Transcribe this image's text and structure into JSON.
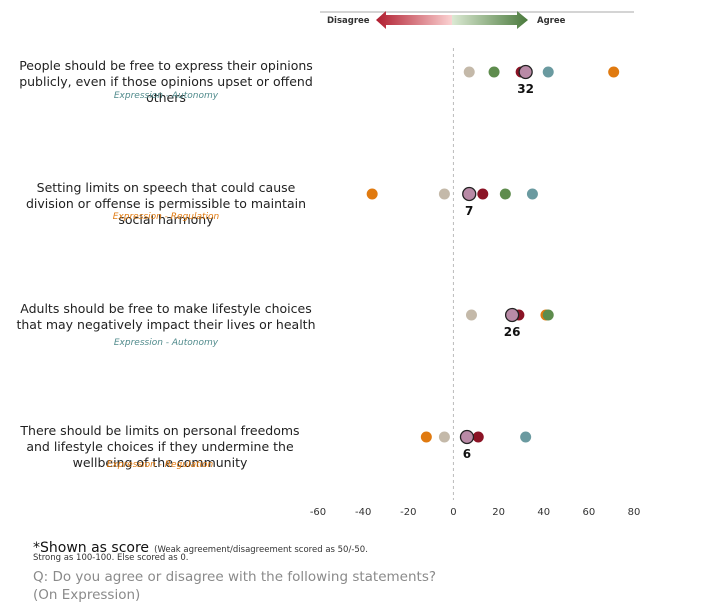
{
  "scale": {
    "disagree_label": "Disagree",
    "agree_label": "Agree"
  },
  "chart_data": {
    "type": "scatter",
    "xlim": [
      -60,
      80
    ],
    "x_ticks": [
      -60,
      -40,
      -20,
      0,
      20,
      40,
      60,
      80
    ],
    "colors": {
      "orange": "#e07a10",
      "beige": "#c4b9a9",
      "green": "#5e8c4d",
      "darkred": "#8b1325",
      "teal": "#6a9aa0",
      "overall": "#b98aa6"
    },
    "statements": [
      {
        "text": "People should be free to express their opinions publicly, even if those opinions upset or offend others",
        "category": "Expression - Autonomy",
        "category_type": "autonomy",
        "score": 32,
        "score_label": "32",
        "points": [
          {
            "group": "beige",
            "value": 7
          },
          {
            "group": "green",
            "value": 18
          },
          {
            "group": "darkred",
            "value": 30
          },
          {
            "group": "teal",
            "value": 42
          },
          {
            "group": "orange",
            "value": 71
          }
        ]
      },
      {
        "text": "Setting limits on speech that could cause division or offense is permissible to maintain social harmony",
        "category": "Expression - Regulation",
        "category_type": "regulation",
        "score": 7,
        "score_label": "7",
        "points": [
          {
            "group": "orange",
            "value": -36
          },
          {
            "group": "beige",
            "value": -4
          },
          {
            "group": "darkred",
            "value": 13
          },
          {
            "group": "green",
            "value": 23
          },
          {
            "group": "teal",
            "value": 35
          }
        ]
      },
      {
        "text": "Adults should be free to make lifestyle choices that may negatively impact their lives or health",
        "category": "Expression - Autonomy",
        "category_type": "autonomy",
        "score": 26,
        "score_label": "26",
        "points": [
          {
            "group": "beige",
            "value": 8
          },
          {
            "group": "darkred",
            "value": 29
          },
          {
            "group": "orange",
            "value": 41
          },
          {
            "group": "green",
            "value": 42
          }
        ]
      },
      {
        "text": "There should be limits on personal freedoms and lifestyle choices if they undermine the wellbeing of the community",
        "category": "Expression - Regulation",
        "category_type": "regulation",
        "score": 6,
        "score_label": "6",
        "points": [
          {
            "group": "orange",
            "value": -12
          },
          {
            "group": "beige",
            "value": -4
          },
          {
            "group": "darkred",
            "value": 11
          },
          {
            "group": "teal",
            "value": 32
          }
        ]
      }
    ]
  },
  "footnote": {
    "shown_as": "*Shown as score",
    "method_1": "(Weak agreement/disagreement scored as 50/-50.",
    "method_2": "Strong as 100-100. Else scored as 0.",
    "question_1": "Q: Do you agree or disagree with the following statements?",
    "question_2": "(On Expression)"
  }
}
